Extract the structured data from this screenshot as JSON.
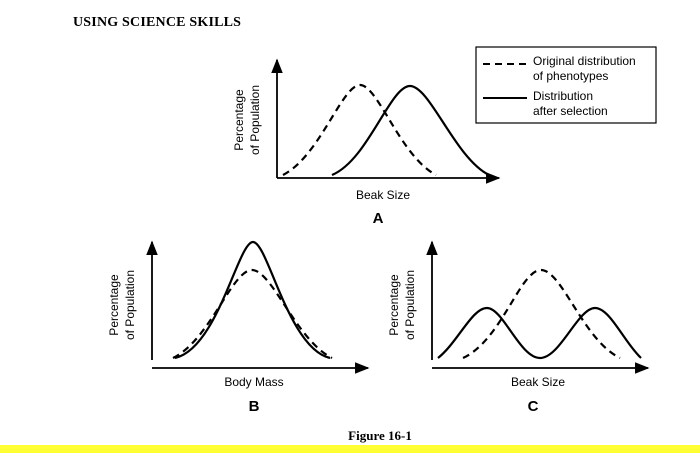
{
  "heading": "USING SCIENCE SKILLS",
  "figure_caption": "Figure 16-1",
  "legend": {
    "original_label_line1": "Original distribution",
    "original_label_line2": "of phenotypes",
    "after_label_line1": "Distribution",
    "after_label_line2": "after selection"
  },
  "panels": {
    "a": {
      "letter": "A",
      "xlabel": "Beak Size",
      "ylabel_line1": "Percentage",
      "ylabel_line2": "of Population",
      "selection": "directional"
    },
    "b": {
      "letter": "B",
      "xlabel": "Body Mass",
      "ylabel_line1": "Percentage",
      "ylabel_line2": "of Population",
      "selection": "stabilizing"
    },
    "c": {
      "letter": "C",
      "xlabel": "Beak Size",
      "ylabel_line1": "Percentage",
      "ylabel_line2": "of Population",
      "selection": "disruptive"
    }
  },
  "colors": {
    "ink": "#000000",
    "background": "#ffffff",
    "bottom_bar": "#ffff33"
  }
}
